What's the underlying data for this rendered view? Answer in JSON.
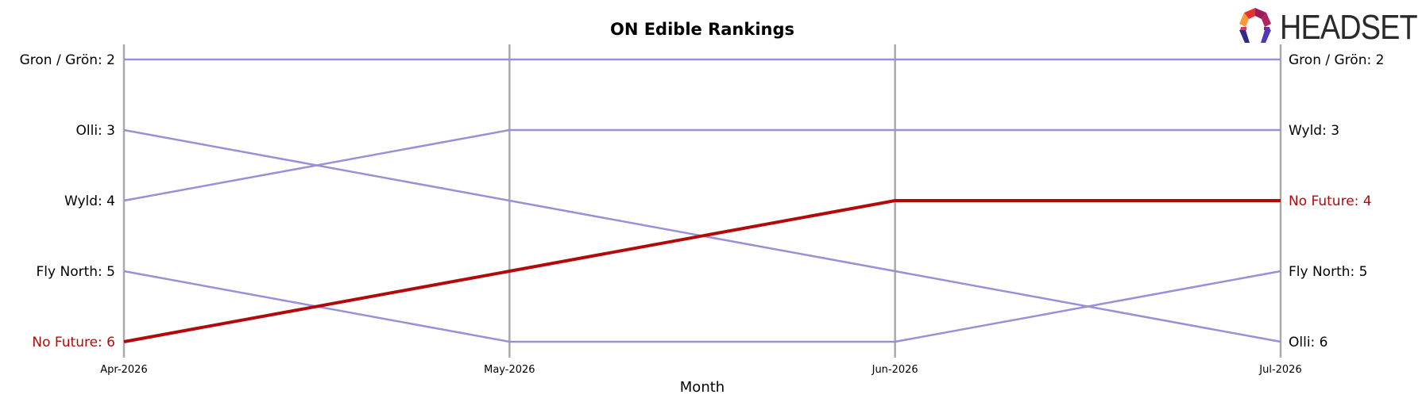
{
  "chart_data": {
    "type": "line",
    "title": "ON Edible Rankings",
    "xlabel": "Month",
    "ylabel": "",
    "x": [
      "Apr-2026",
      "May-2026",
      "Jun-2026",
      "Jul-2026"
    ],
    "ylim": [
      2,
      6
    ],
    "y_inverted": true,
    "grid": "vertical lines at each month",
    "series": [
      {
        "name": "Gron / Grön",
        "values": [
          2,
          2,
          2,
          2
        ],
        "color": "#9b8fd8",
        "highlight": false,
        "start_label": "Gron / Grön: 2",
        "end_label": "Gron / Grön: 2"
      },
      {
        "name": "Olli",
        "values": [
          3,
          4,
          5,
          6
        ],
        "color": "#9b8fd8",
        "highlight": false,
        "start_label": "Olli: 3",
        "end_label": "Olli: 6"
      },
      {
        "name": "Wyld",
        "values": [
          4,
          3,
          3,
          3
        ],
        "color": "#9b8fd8",
        "highlight": false,
        "start_label": "Wyld: 4",
        "end_label": "Wyld: 3"
      },
      {
        "name": "Fly North",
        "values": [
          5,
          6,
          6,
          5
        ],
        "color": "#9b8fd8",
        "highlight": false,
        "start_label": "Fly North: 5",
        "end_label": "Fly North: 5"
      },
      {
        "name": "No Future",
        "values": [
          6,
          5,
          4,
          4
        ],
        "color": "#b20a0a",
        "highlight": true,
        "start_label": "No Future: 6",
        "end_label": "No Future: 4"
      }
    ]
  },
  "logo": {
    "text": "HEADSET",
    "icon": "headset-logo-icon",
    "colors": [
      "#e3342f",
      "#f6993f",
      "#9b1c5a",
      "#2d2a8c",
      "#4b3bb0"
    ]
  }
}
